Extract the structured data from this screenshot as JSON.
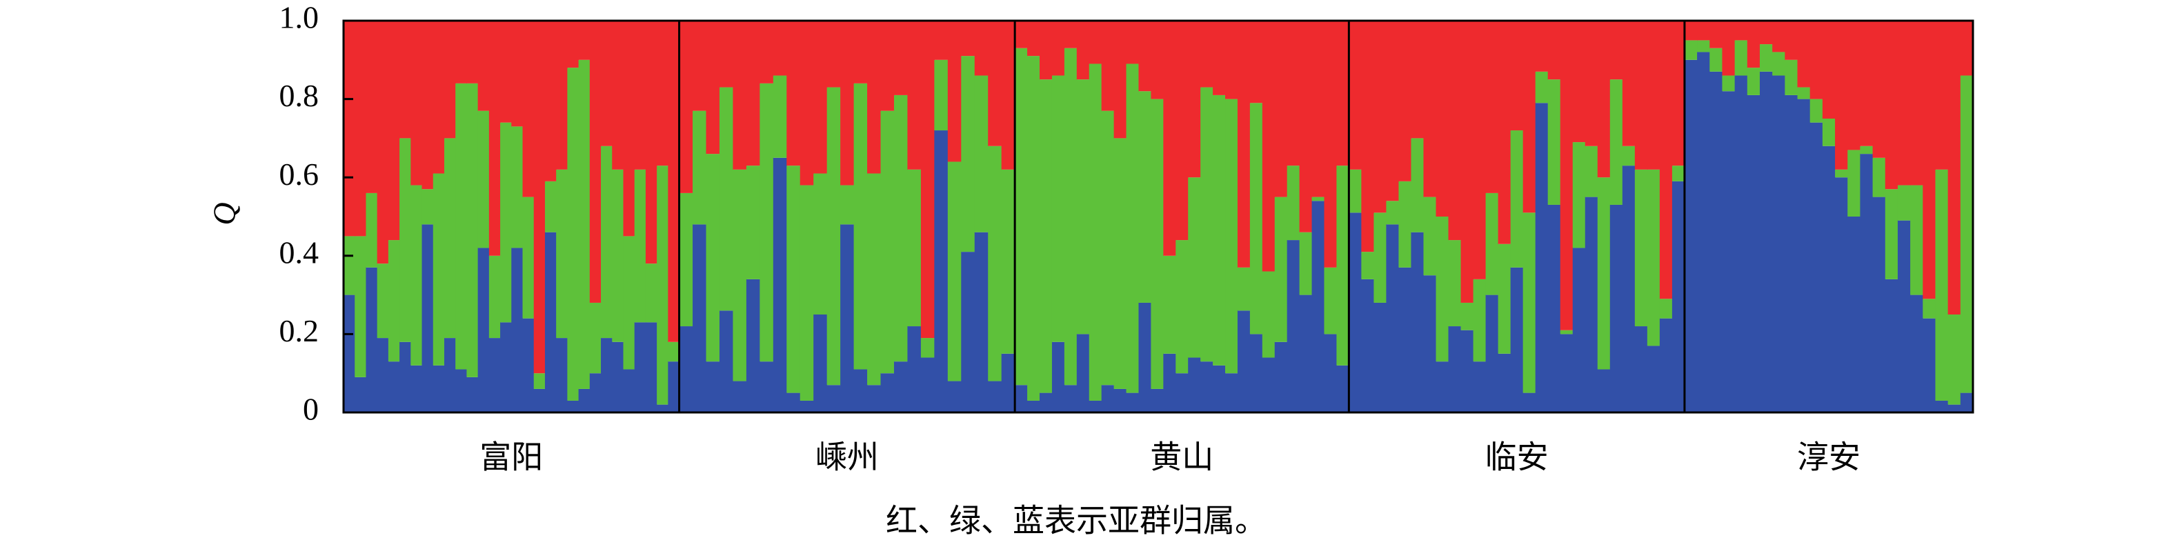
{
  "chart_data": {
    "type": "structure",
    "ylabel": "Q",
    "caption": "红、绿、蓝表示亚群归属。",
    "ylim": [
      0,
      1
    ],
    "yticks": [
      0,
      0.2,
      0.4,
      0.6,
      0.8,
      {
        "value": 1,
        "label": "1.0"
      }
    ],
    "colors": [
      "#3250a8",
      "#5ec13a",
      "#ee2a2e"
    ],
    "groups": [
      {
        "label": "富阳",
        "values": [
          [
            0.3,
            0.15,
            0.55
          ],
          [
            0.09,
            0.36,
            0.55
          ],
          [
            0.37,
            0.19,
            0.44
          ],
          [
            0.19,
            0.19,
            0.62
          ],
          [
            0.13,
            0.31,
            0.56
          ],
          [
            0.18,
            0.52,
            0.3
          ],
          [
            0.12,
            0.46,
            0.42
          ],
          [
            0.48,
            0.09,
            0.43
          ],
          [
            0.12,
            0.49,
            0.39
          ],
          [
            0.19,
            0.51,
            0.3
          ],
          [
            0.11,
            0.73,
            0.16
          ],
          [
            0.09,
            0.75,
            0.16
          ],
          [
            0.42,
            0.35,
            0.23
          ],
          [
            0.19,
            0.21,
            0.6
          ],
          [
            0.23,
            0.51,
            0.26
          ],
          [
            0.42,
            0.31,
            0.27
          ],
          [
            0.24,
            0.31,
            0.45
          ],
          [
            0.06,
            0.04,
            0.9
          ],
          [
            0.46,
            0.13,
            0.41
          ],
          [
            0.19,
            0.43,
            0.38
          ],
          [
            0.03,
            0.85,
            0.12
          ],
          [
            0.06,
            0.84,
            0.1
          ],
          [
            0.1,
            0.18,
            0.72
          ],
          [
            0.19,
            0.49,
            0.32
          ],
          [
            0.18,
            0.44,
            0.38
          ],
          [
            0.11,
            0.34,
            0.55
          ],
          [
            0.23,
            0.39,
            0.38
          ],
          [
            0.23,
            0.15,
            0.62
          ],
          [
            0.02,
            0.61,
            0.37
          ],
          [
            0.13,
            0.05,
            0.82
          ]
        ]
      },
      {
        "label": "嵊州",
        "values": [
          [
            0.22,
            0.34,
            0.44
          ],
          [
            0.48,
            0.29,
            0.23
          ],
          [
            0.13,
            0.53,
            0.34
          ],
          [
            0.26,
            0.57,
            0.17
          ],
          [
            0.08,
            0.54,
            0.38
          ],
          [
            0.34,
            0.29,
            0.37
          ],
          [
            0.13,
            0.71,
            0.16
          ],
          [
            0.65,
            0.21,
            0.14
          ],
          [
            0.05,
            0.58,
            0.37
          ],
          [
            0.03,
            0.55,
            0.42
          ],
          [
            0.25,
            0.36,
            0.39
          ],
          [
            0.07,
            0.76,
            0.17
          ],
          [
            0.48,
            0.1,
            0.42
          ],
          [
            0.11,
            0.73,
            0.16
          ],
          [
            0.07,
            0.54,
            0.39
          ],
          [
            0.1,
            0.67,
            0.23
          ],
          [
            0.13,
            0.68,
            0.19
          ],
          [
            0.22,
            0.4,
            0.38
          ],
          [
            0.14,
            0.05,
            0.81
          ],
          [
            0.72,
            0.18,
            0.1
          ],
          [
            0.08,
            0.56,
            0.36
          ],
          [
            0.41,
            0.5,
            0.09
          ],
          [
            0.46,
            0.4,
            0.14
          ],
          [
            0.08,
            0.6,
            0.32
          ],
          [
            0.15,
            0.47,
            0.38
          ]
        ]
      },
      {
        "label": "黄山",
        "values": [
          [
            0.07,
            0.86,
            0.07
          ],
          [
            0.03,
            0.88,
            0.09
          ],
          [
            0.05,
            0.8,
            0.15
          ],
          [
            0.18,
            0.68,
            0.14
          ],
          [
            0.07,
            0.86,
            0.07
          ],
          [
            0.2,
            0.65,
            0.15
          ],
          [
            0.03,
            0.86,
            0.11
          ],
          [
            0.07,
            0.7,
            0.23
          ],
          [
            0.06,
            0.64,
            0.3
          ],
          [
            0.05,
            0.84,
            0.11
          ],
          [
            0.28,
            0.54,
            0.18
          ],
          [
            0.06,
            0.74,
            0.2
          ],
          [
            0.15,
            0.25,
            0.6
          ],
          [
            0.1,
            0.34,
            0.56
          ],
          [
            0.14,
            0.46,
            0.4
          ],
          [
            0.13,
            0.7,
            0.17
          ],
          [
            0.12,
            0.69,
            0.19
          ],
          [
            0.1,
            0.7,
            0.2
          ],
          [
            0.26,
            0.11,
            0.63
          ],
          [
            0.2,
            0.59,
            0.21
          ],
          [
            0.14,
            0.22,
            0.64
          ],
          [
            0.18,
            0.37,
            0.45
          ],
          [
            0.44,
            0.19,
            0.37
          ],
          [
            0.3,
            0.16,
            0.54
          ],
          [
            0.54,
            0.01,
            0.45
          ],
          [
            0.2,
            0.17,
            0.63
          ],
          [
            0.12,
            0.51,
            0.37
          ]
        ]
      },
      {
        "label": "临安",
        "values": [
          [
            0.51,
            0.11,
            0.38
          ],
          [
            0.34,
            0.07,
            0.59
          ],
          [
            0.28,
            0.23,
            0.49
          ],
          [
            0.48,
            0.06,
            0.46
          ],
          [
            0.37,
            0.22,
            0.41
          ],
          [
            0.46,
            0.24,
            0.3
          ],
          [
            0.35,
            0.2,
            0.45
          ],
          [
            0.13,
            0.37,
            0.5
          ],
          [
            0.22,
            0.22,
            0.56
          ],
          [
            0.21,
            0.07,
            0.72
          ],
          [
            0.13,
            0.21,
            0.66
          ],
          [
            0.3,
            0.26,
            0.44
          ],
          [
            0.15,
            0.28,
            0.57
          ],
          [
            0.37,
            0.35,
            0.28
          ],
          [
            0.05,
            0.46,
            0.49
          ],
          [
            0.79,
            0.08,
            0.13
          ],
          [
            0.53,
            0.32,
            0.15
          ],
          [
            0.2,
            0.01,
            0.79
          ],
          [
            0.42,
            0.27,
            0.31
          ],
          [
            0.55,
            0.13,
            0.32
          ],
          [
            0.11,
            0.49,
            0.4
          ],
          [
            0.53,
            0.32,
            0.15
          ],
          [
            0.63,
            0.05,
            0.32
          ],
          [
            0.22,
            0.4,
            0.38
          ],
          [
            0.17,
            0.45,
            0.38
          ],
          [
            0.24,
            0.05,
            0.71
          ],
          [
            0.59,
            0.04,
            0.37
          ]
        ]
      },
      {
        "label": "淳安",
        "values": [
          [
            0.9,
            0.05,
            0.05
          ],
          [
            0.92,
            0.03,
            0.05
          ],
          [
            0.87,
            0.06,
            0.07
          ],
          [
            0.82,
            0.04,
            0.14
          ],
          [
            0.86,
            0.09,
            0.05
          ],
          [
            0.81,
            0.07,
            0.12
          ],
          [
            0.87,
            0.07,
            0.06
          ],
          [
            0.86,
            0.06,
            0.08
          ],
          [
            0.81,
            0.09,
            0.1
          ],
          [
            0.8,
            0.03,
            0.17
          ],
          [
            0.74,
            0.06,
            0.2
          ],
          [
            0.68,
            0.07,
            0.25
          ],
          [
            0.6,
            0.02,
            0.38
          ],
          [
            0.5,
            0.17,
            0.33
          ],
          [
            0.66,
            0.02,
            0.32
          ],
          [
            0.55,
            0.1,
            0.35
          ],
          [
            0.34,
            0.23,
            0.43
          ],
          [
            0.49,
            0.09,
            0.42
          ],
          [
            0.3,
            0.28,
            0.42
          ],
          [
            0.24,
            0.05,
            0.71
          ],
          [
            0.03,
            0.59,
            0.38
          ],
          [
            0.02,
            0.23,
            0.75
          ],
          [
            0.05,
            0.81,
            0.14
          ]
        ]
      }
    ]
  }
}
